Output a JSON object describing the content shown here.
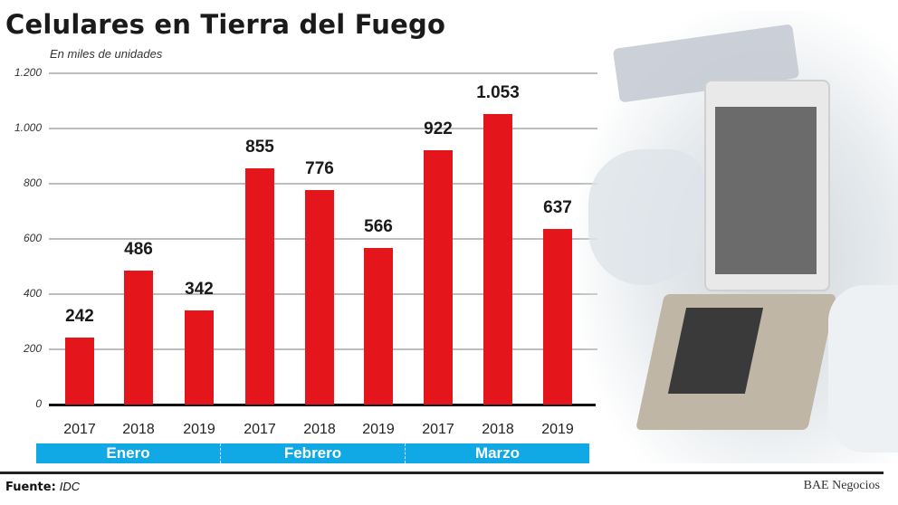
{
  "title": "Celulares en Tierra del Fuego",
  "subtitle": "En miles de unidades",
  "y_ticks": [
    "1.200",
    "1.000",
    "800",
    "600",
    "400",
    "200",
    "0"
  ],
  "x_labels": [
    "2017",
    "2018",
    "2019",
    "2017",
    "2018",
    "2019",
    "2017",
    "2018",
    "2019"
  ],
  "groups": [
    "Enero",
    "Febrero",
    "Marzo"
  ],
  "value_labels": [
    "242",
    "486",
    "342",
    "855",
    "776",
    "566",
    "922",
    "1.053",
    "637"
  ],
  "footer": {
    "source_label": "Fuente:",
    "source_value": "IDC",
    "credit": "BAE Negocios"
  },
  "colors": {
    "bar": "#e4161b",
    "band": "#10a9e5",
    "grid": "#bdbdbd"
  },
  "chart_data": {
    "type": "bar",
    "title": "Celulares en Tierra del Fuego",
    "subtitle": "En miles de unidades",
    "xlabel": "",
    "ylabel": "En miles de unidades",
    "ylim": [
      0,
      1200
    ],
    "yticks": [
      0,
      200,
      400,
      600,
      800,
      1000,
      1200
    ],
    "grid": true,
    "legend": null,
    "categories": [
      "Enero 2017",
      "Enero 2018",
      "Enero 2019",
      "Febrero 2017",
      "Febrero 2018",
      "Febrero 2019",
      "Marzo 2017",
      "Marzo 2018",
      "Marzo 2019"
    ],
    "groups": [
      {
        "name": "Enero",
        "years": [
          "2017",
          "2018",
          "2019"
        ],
        "values": [
          242,
          486,
          342
        ]
      },
      {
        "name": "Febrero",
        "years": [
          "2017",
          "2018",
          "2019"
        ],
        "values": [
          855,
          776,
          566
        ]
      },
      {
        "name": "Marzo",
        "years": [
          "2017",
          "2018",
          "2019"
        ],
        "values": [
          922,
          1053,
          637
        ]
      }
    ],
    "values": [
      242,
      486,
      342,
      855,
      776,
      566,
      922,
      1053,
      637
    ],
    "source": "IDC"
  }
}
